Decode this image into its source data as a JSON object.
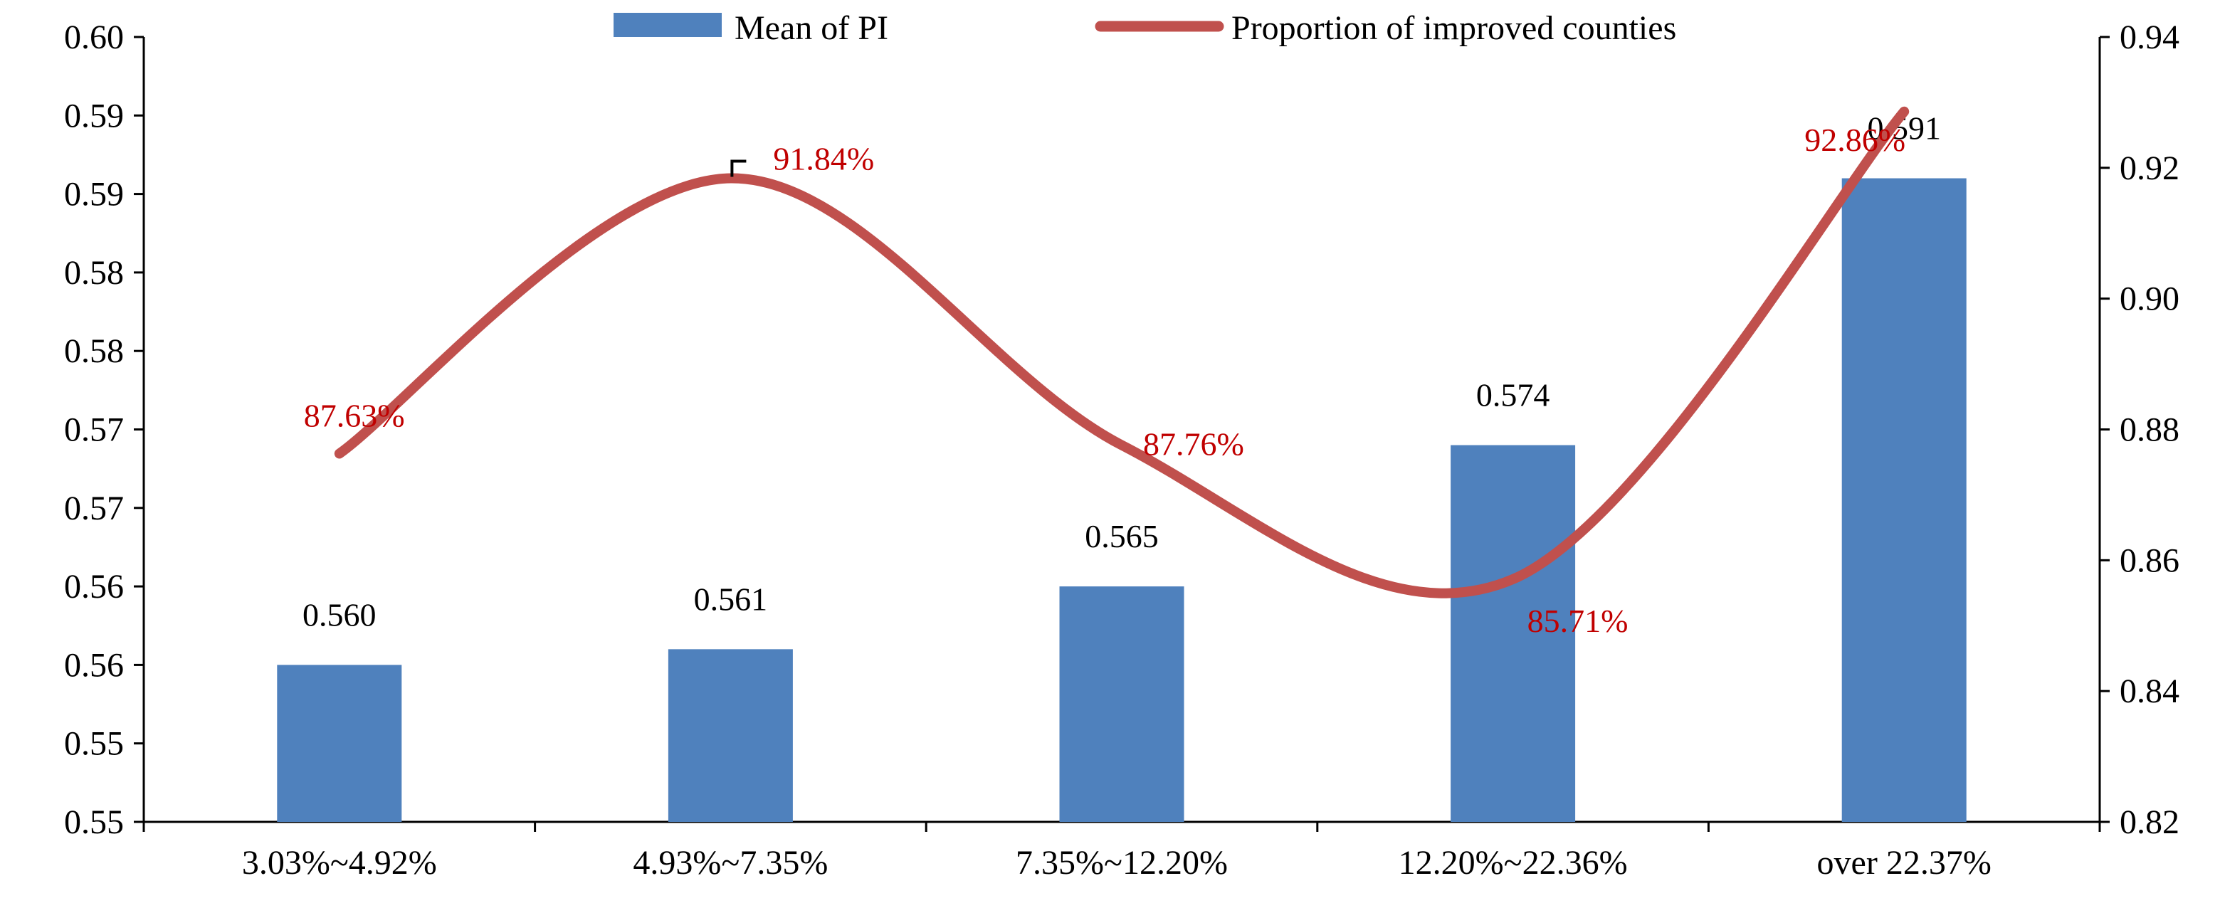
{
  "chart_data": {
    "type": "bar+line",
    "categories": [
      "3.03%~4.92%",
      "4.93%~7.35%",
      "7.35%~12.20%",
      "12.20%~22.36%",
      "over 22.37%"
    ],
    "series": [
      {
        "name": "Mean of PI",
        "type": "bar",
        "axis": "left",
        "color": "#4f81bd",
        "values": [
          0.56,
          0.561,
          0.565,
          0.574,
          0.591
        ],
        "labels": [
          "0.560",
          "0.561",
          "0.565",
          "0.574",
          "0.591"
        ]
      },
      {
        "name": "Proportion of improved counties",
        "type": "line",
        "smooth": true,
        "axis": "right",
        "color": "#c0504d",
        "values": [
          0.8763,
          0.9184,
          0.8776,
          0.8571,
          0.9286
        ],
        "labels": [
          "87.63%",
          "91.84%",
          "87.76%",
          "85.71%",
          "92.86%"
        ]
      }
    ],
    "y_left": {
      "min": 0.55,
      "max": 0.6,
      "tick_labels": [
        "0.60",
        "0.59",
        "0.59",
        "0.58",
        "0.58",
        "0.57",
        "0.57",
        "0.56",
        "0.56",
        "0.55",
        "0.55"
      ]
    },
    "y_right": {
      "min": 0.82,
      "max": 0.94,
      "tick_labels": [
        "0.94",
        "0.92",
        "0.90",
        "0.88",
        "0.86",
        "0.84",
        "0.82"
      ]
    },
    "legend_position": "top-center",
    "grid": false
  }
}
